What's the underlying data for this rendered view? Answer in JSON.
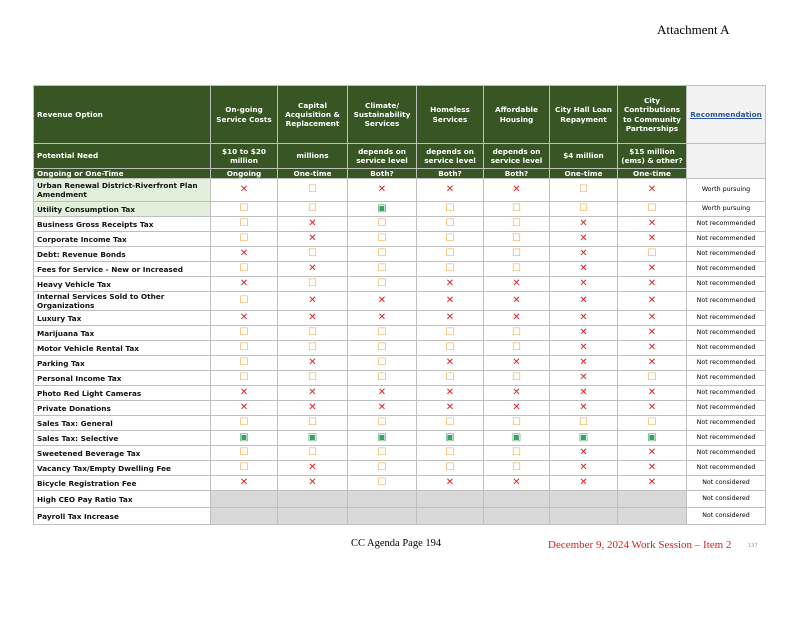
{
  "header": {
    "attachment": "Attachment A"
  },
  "table": {
    "columns": [
      "Revenue Option",
      "On-going Service Costs",
      "Capital Acquisition & Replacement",
      "Climate/ Sustainability Services",
      "Homeless Services",
      "Affordable Housing",
      "City Hall Loan Repayment",
      "City Contributions to Community Partnerships",
      "Recommendation"
    ],
    "need": {
      "label": "Potential Need",
      "values": [
        "$10 to $20 million",
        "millions",
        "depends on service level",
        "depends on service level",
        "depends on service level",
        "$4 million",
        "$15 million (ems) & other?"
      ]
    },
    "timing": {
      "label": "Ongoing or One-Time",
      "values": [
        "Ongoing",
        "One-time",
        "Both?",
        "Both?",
        "Both?",
        "One-time",
        "One-time"
      ]
    },
    "rows": [
      {
        "option": "Urban Renewal District-Riverfront Plan Amendment",
        "cells": [
          "✕",
          "☐",
          "✕",
          "✕",
          "✕",
          "☐",
          "✕"
        ],
        "recommendation": "Worth pursuing"
      },
      {
        "option": "Utility Consumption Tax",
        "cells": [
          "☐",
          "☐",
          "▣",
          "☐",
          "☐",
          "☐",
          "☐"
        ],
        "recommendation": "Worth pursuing"
      },
      {
        "option": "Business Gross Receipts Tax",
        "cells": [
          "☐",
          "✕",
          "☐",
          "☐",
          "☐",
          "✕",
          "✕"
        ],
        "recommendation": "Not recommended"
      },
      {
        "option": "Corporate Income Tax",
        "cells": [
          "☐",
          "✕",
          "☐",
          "☐",
          "☐",
          "✕",
          "✕"
        ],
        "recommendation": "Not recommended"
      },
      {
        "option": "Debt: Revenue Bonds",
        "cells": [
          "✕",
          "☐",
          "☐",
          "☐",
          "☐",
          "✕",
          "☐"
        ],
        "recommendation": "Not recommended"
      },
      {
        "option": "Fees for Service - New or Increased",
        "cells": [
          "☐",
          "✕",
          "☐",
          "☐",
          "☐",
          "✕",
          "✕"
        ],
        "recommendation": "Not recommended"
      },
      {
        "option": "Heavy Vehicle Tax",
        "cells": [
          "✕",
          "☐",
          "☐",
          "✕",
          "✕",
          "✕",
          "✕"
        ],
        "recommendation": "Not recommended"
      },
      {
        "option": "Internal Services Sold to Other Organizations",
        "cells": [
          "☐",
          "✕",
          "✕",
          "✕",
          "✕",
          "✕",
          "✕"
        ],
        "recommendation": "Not recommended"
      },
      {
        "option": "Luxury Tax",
        "cells": [
          "✕",
          "✕",
          "✕",
          "✕",
          "✕",
          "✕",
          "✕"
        ],
        "recommendation": "Not recommended"
      },
      {
        "option": "Marijuana Tax",
        "cells": [
          "☐",
          "☐",
          "☐",
          "☐",
          "☐",
          "✕",
          "✕"
        ],
        "recommendation": "Not recommended"
      },
      {
        "option": "Motor Vehicle Rental Tax",
        "cells": [
          "☐",
          "☐",
          "☐",
          "☐",
          "☐",
          "✕",
          "✕"
        ],
        "recommendation": "Not recommended"
      },
      {
        "option": "Parking Tax",
        "cells": [
          "☐",
          "✕",
          "☐",
          "✕",
          "✕",
          "✕",
          "✕"
        ],
        "recommendation": "Not recommended"
      },
      {
        "option": "Personal Income Tax",
        "cells": [
          "☐",
          "☐",
          "☐",
          "☐",
          "☐",
          "✕",
          "☐"
        ],
        "recommendation": "Not recommended"
      },
      {
        "option": "Photo Red Light Cameras",
        "cells": [
          "✕",
          "✕",
          "✕",
          "✕",
          "✕",
          "✕",
          "✕"
        ],
        "recommendation": "Not recommended"
      },
      {
        "option": "Private Donations",
        "cells": [
          "✕",
          "✕",
          "✕",
          "✕",
          "✕",
          "✕",
          "✕"
        ],
        "recommendation": "Not recommended"
      },
      {
        "option": "Sales Tax: General",
        "cells": [
          "☐",
          "☐",
          "☐",
          "☐",
          "☐",
          "☐",
          "☐"
        ],
        "recommendation": "Not recommended"
      },
      {
        "option": "Sales Tax: Selective",
        "cells": [
          "▣",
          "▣",
          "▣",
          "▣",
          "▣",
          "▣",
          "▣"
        ],
        "recommendation": "Not recommended"
      },
      {
        "option": "Sweetened Beverage Tax",
        "cells": [
          "☐",
          "☐",
          "☐",
          "☐",
          "☐",
          "✕",
          "✕"
        ],
        "recommendation": "Not recommended"
      },
      {
        "option": "Vacancy Tax/Empty Dwelling Fee",
        "cells": [
          "☐",
          "✕",
          "☐",
          "☐",
          "☐",
          "✕",
          "✕"
        ],
        "recommendation": "Not recommended"
      },
      {
        "option": "Bicycle Registration Fee",
        "cells": [
          "✕",
          "✕",
          "☐",
          "✕",
          "✕",
          "✕",
          "✕"
        ],
        "recommendation": "Not considered"
      },
      {
        "option": "High CEO Pay Ratio Tax",
        "cells": [
          null,
          null,
          null,
          null,
          null,
          null,
          null
        ],
        "recommendation": "Not considered"
      },
      {
        "option": "Payroll Tax Increase",
        "cells": [
          null,
          null,
          null,
          null,
          null,
          null,
          null
        ],
        "recommendation": "Not considered"
      }
    ]
  },
  "footer": {
    "agenda_page": "CC Agenda Page 194",
    "session": "December 9, 2024 Work Session – Item 2",
    "page_number": "137"
  }
}
